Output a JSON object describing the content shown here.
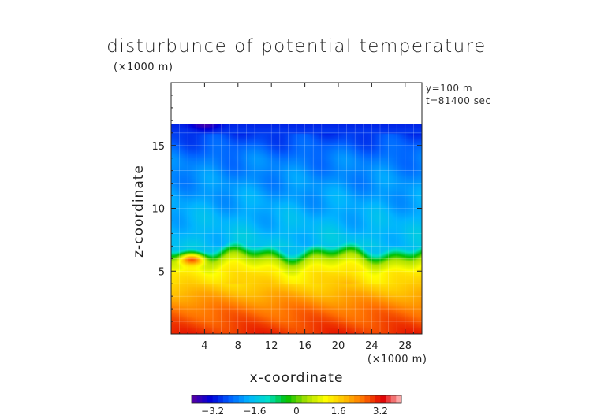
{
  "chart_data": {
    "type": "heatmap",
    "title": "disturbunce of potential temperature",
    "xlabel": "x-coordinate",
    "ylabel": "z-coordinate",
    "x_unit": "(×1000 m)",
    "y_unit": "(×1000 m)",
    "annotations": [
      "y=100 m",
      "t=81400 sec"
    ],
    "xlim": [
      0,
      30
    ],
    "ylim": [
      0,
      20
    ],
    "x_ticks": [
      4,
      8,
      12,
      16,
      20,
      24,
      28
    ],
    "y_ticks": [
      5,
      10,
      15
    ],
    "data_top_z": 16.7,
    "colorbar": {
      "range": [
        -4.0,
        4.0
      ],
      "tick_values": [
        -3.2,
        -1.6,
        0,
        1.6,
        3.2
      ],
      "tick_labels": [
        "−3.2",
        "−1.6",
        "0",
        "1.6",
        "3.2"
      ],
      "colors": [
        "#5a00a0",
        "#0000d8",
        "#0060ff",
        "#00b4ff",
        "#00e0c8",
        "#00c000",
        "#a8e000",
        "#ffff00",
        "#ffc000",
        "#ff7000",
        "#e00000",
        "#ffc0c0"
      ]
    },
    "field_profile_mean": [
      {
        "z": 0.0,
        "value": 3.0
      },
      {
        "z": 2.0,
        "value": 2.5
      },
      {
        "z": 4.0,
        "value": 1.6
      },
      {
        "z": 5.2,
        "value": 1.2
      },
      {
        "z": 6.0,
        "value": 0.4
      },
      {
        "z": 7.0,
        "value": -1.6
      },
      {
        "z": 10.0,
        "value": -1.9
      },
      {
        "z": 14.0,
        "value": -2.3
      },
      {
        "z": 16.7,
        "value": -3.0
      }
    ],
    "features": [
      {
        "label": "warm anomaly",
        "x": 2.5,
        "z": 6.0,
        "value": 2.8
      },
      {
        "label": "cold cap",
        "x": 4.0,
        "z": 16.7,
        "value": -3.8
      }
    ]
  }
}
